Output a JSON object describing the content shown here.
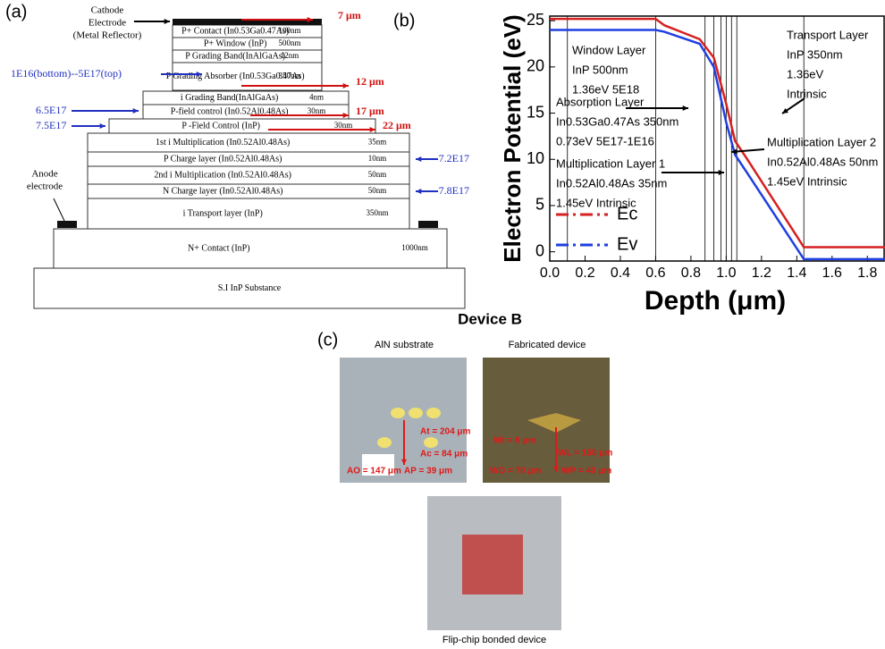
{
  "panel_a": {
    "label": "(a)",
    "cathode": [
      "Cathode",
      "Electrode",
      "(Metal Reflector)"
    ],
    "anode": [
      "Anode",
      "electrode"
    ],
    "layers": [
      {
        "name": "P+ Contact (In0.53Ga0.47As)",
        "thickness": "100nm"
      },
      {
        "name": "P+ Window (InP)",
        "thickness": "500nm"
      },
      {
        "name": "P Grading Band(InAlGaAs)",
        "thickness": "12nm"
      },
      {
        "name": "P Grading Absorber (In0.53Ga0.47As)",
        "thickness": "350nm"
      },
      {
        "name": "i Grading Band(InAlGaAs)",
        "thickness": "4nm"
      },
      {
        "name": "P-field control (In0.52Al0.48As)",
        "thickness": "30nm"
      },
      {
        "name": "P -Field Control (InP)",
        "thickness": "30nm"
      },
      {
        "name": "1st i Multiplication (In0.52Al0.48As)",
        "thickness": "35nm"
      },
      {
        "name": "P Charge layer (In0.52Al0.48As)",
        "thickness": "10nm"
      },
      {
        "name": "2nd i Multiplication (In0.52Al0.48As)",
        "thickness": "50nm"
      },
      {
        "name": "N Charge layer (In0.52Al0.48As)",
        "thickness": "50nm"
      },
      {
        "name": "i Transport layer (InP)",
        "thickness": "350nm"
      },
      {
        "name": "N+ Contact (InP)",
        "thickness": "1000nm"
      },
      {
        "name": "S.I InP Substance"
      }
    ],
    "doping": [
      "1E16(bottom)--5E17(top)",
      "6.5E17",
      "7.5E17",
      "7.2E17",
      "7.8E17"
    ],
    "widths": [
      "7 μm",
      "12 μm",
      "17 μm",
      "22 μm"
    ]
  },
  "panel_b": {
    "label": "(b)"
  },
  "chart_data": {
    "type": "line",
    "x_label": "Depth (μm)",
    "y_label": "Electron Potential (eV)",
    "x": [
      0,
      0.6,
      0.65,
      0.85,
      0.93,
      1.0,
      1.05,
      1.12,
      1.44,
      1.9
    ],
    "series": [
      {
        "name": "Ec",
        "color": "#d62020",
        "values": [
          25.2,
          25.2,
          24.5,
          23,
          21,
          16,
          12,
          10,
          0.5,
          0.5
        ]
      },
      {
        "name": "Ev",
        "color": "#1f3fe0",
        "values": [
          24,
          24,
          23.8,
          22.5,
          20,
          14,
          10.5,
          8.5,
          -0.8,
          -0.8
        ]
      }
    ],
    "xlim": [
      0,
      1.9
    ],
    "ylim": [
      -1,
      25.5
    ],
    "xticks": [
      {
        "value": 0,
        "label": "0.0"
      },
      0.2,
      0.4,
      0.6,
      0.8,
      {
        "value": 1,
        "label": "1.0"
      },
      1.2,
      1.4,
      1.6,
      1.8
    ],
    "yticks": [
      0,
      5,
      10,
      15,
      20,
      25
    ],
    "boundaries": [
      0.1,
      0.6,
      0.88,
      0.93,
      0.97,
      1.0,
      1.03,
      1.06,
      1.44
    ],
    "legend": "lower left",
    "annotations": [
      [
        "Window Layer",
        "InP 500nm",
        "1.36eV 5E18"
      ],
      [
        "Absorption Layer",
        "In0.53Ga0.47As 350nm",
        "0.73eV 5E17-1E16"
      ],
      [
        "Multiplication Layer 1",
        "In0.52Al0.48As 35nm",
        "1.45eV Intrinsic"
      ],
      [
        "Transport Layer",
        "InP 350nm",
        "1.36eV",
        "Intrinsic"
      ],
      [
        "Multiplication Layer 2",
        "In0.52Al0.48As 50nm",
        "1.45eV Intrinsic"
      ]
    ]
  },
  "panel_c": {
    "title": "Device B",
    "label": "(c)",
    "images": [
      {
        "caption": "AlN substrate",
        "labels": [
          "At = 204 μm",
          "Ac = 84 μm",
          "AO = 147 μm",
          "AP = 39 μm"
        ]
      },
      {
        "caption": "Fabricated device",
        "labels": [
          "Wt = 8 μm",
          "WL = 150 μm",
          "WO = 70 μm",
          "WP = 40 μm"
        ]
      },
      {
        "caption": "Flip-chip bonded device",
        "labels": []
      }
    ]
  }
}
